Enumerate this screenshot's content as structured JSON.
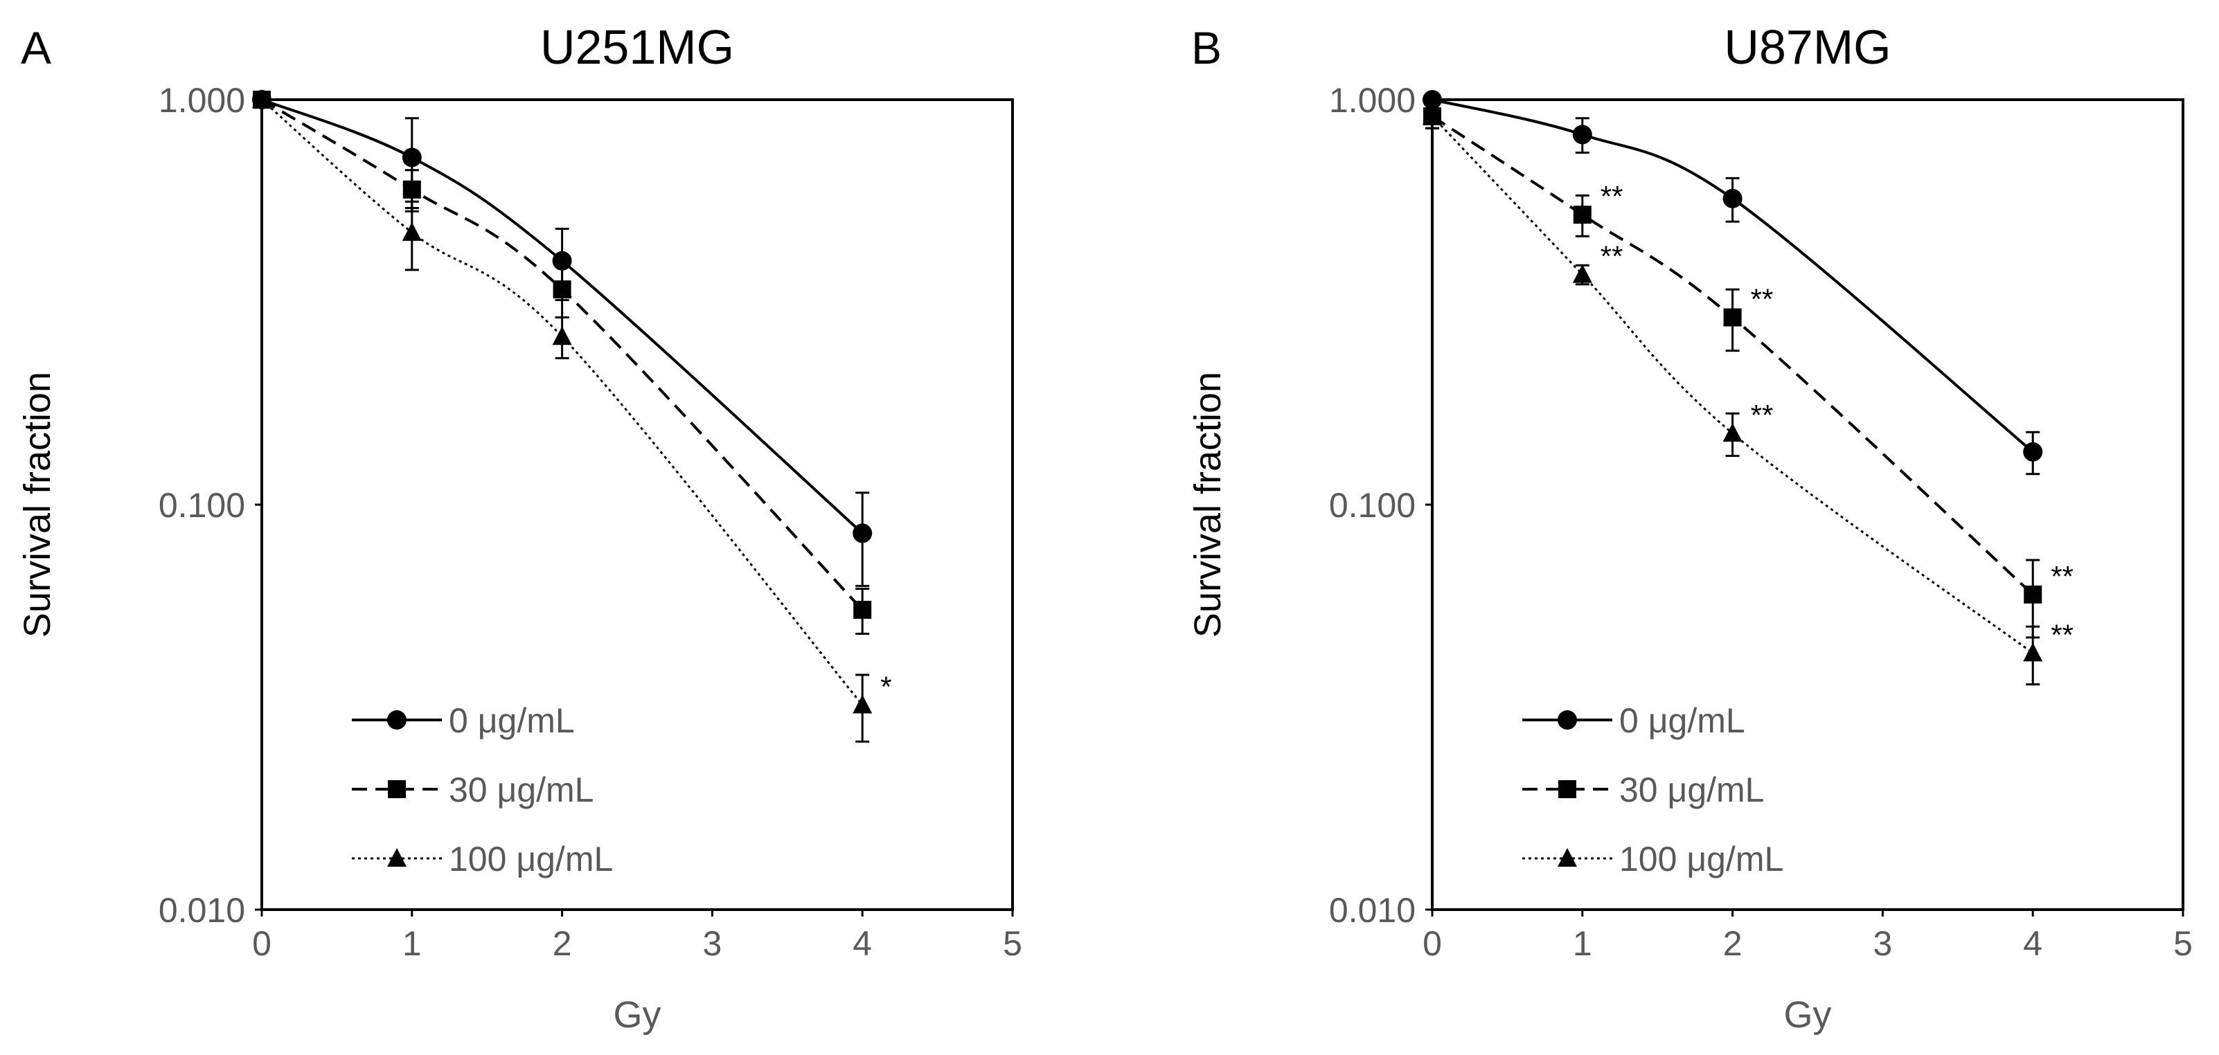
{
  "chart_data": [
    {
      "type": "line",
      "panel_label": "A",
      "title": "U251MG",
      "xlabel": "Gy",
      "ylabel": "Survival fraction",
      "yscale": "log",
      "xlim": [
        0,
        5
      ],
      "ylim": [
        0.01,
        1
      ],
      "x_ticks": [
        "0",
        "1",
        "2",
        "3",
        "4",
        "5"
      ],
      "y_ticks": [
        "1.000",
        "0.100",
        "0.010"
      ],
      "grid": false,
      "legend_position": "bottom-left",
      "series": [
        {
          "name": "0 μg/mL",
          "marker": "circle",
          "line": "solid",
          "x": [
            0,
            1,
            2,
            4
          ],
          "y": [
            1.0,
            0.72,
            0.4,
            0.085
          ],
          "err": [
            0,
            0.18,
            0.08,
            0.022
          ],
          "annotations": [
            "",
            "",
            "",
            ""
          ]
        },
        {
          "name": "30 μg/mL",
          "marker": "square",
          "line": "dashed",
          "x": [
            0,
            1,
            2,
            4
          ],
          "y": [
            1.0,
            0.6,
            0.34,
            0.055
          ],
          "err": [
            0,
            0.07,
            0.05,
            0.007
          ],
          "annotations": [
            "",
            "",
            "",
            ""
          ]
        },
        {
          "name": "100  μg/mL",
          "marker": "triangle",
          "line": "dotted",
          "x": [
            0,
            1,
            2,
            4
          ],
          "y": [
            1.0,
            0.47,
            0.26,
            0.032
          ],
          "err": [
            0,
            0.09,
            0.03,
            0.006
          ],
          "annotations": [
            "",
            "",
            "",
            "*"
          ]
        }
      ]
    },
    {
      "type": "line",
      "panel_label": "B",
      "title": "U87MG",
      "xlabel": "Gy",
      "ylabel": "Survival fraction",
      "yscale": "log",
      "xlim": [
        0,
        5
      ],
      "ylim": [
        0.01,
        1
      ],
      "x_ticks": [
        "0",
        "1",
        "2",
        "3",
        "4",
        "5"
      ],
      "y_ticks": [
        "1.000",
        "0.100",
        "0.010"
      ],
      "grid": false,
      "legend_position": "bottom-left",
      "series": [
        {
          "name": "0 μg/mL",
          "marker": "circle",
          "line": "solid",
          "x": [
            0,
            1,
            2,
            4
          ],
          "y": [
            1.0,
            0.82,
            0.57,
            0.135
          ],
          "err": [
            0,
            0.08,
            0.07,
            0.016
          ],
          "annotations": [
            "",
            "",
            "",
            ""
          ]
        },
        {
          "name": "30 μg/mL",
          "marker": "square",
          "line": "dashed",
          "x": [
            0,
            1,
            2,
            4
          ],
          "y": [
            0.91,
            0.52,
            0.29,
            0.06
          ],
          "err": [
            0.06,
            0.06,
            0.05,
            0.013
          ],
          "annotations": [
            "",
            "**",
            "**",
            "**"
          ]
        },
        {
          "name": "100  μg/mL",
          "marker": "triangle",
          "line": "dotted",
          "x": [
            0,
            1,
            2,
            4
          ],
          "y": [
            0.91,
            0.37,
            0.15,
            0.043
          ],
          "err": [
            0.06,
            0.02,
            0.018,
            0.007
          ],
          "annotations": [
            "",
            "**",
            "**",
            "**"
          ]
        }
      ]
    }
  ]
}
